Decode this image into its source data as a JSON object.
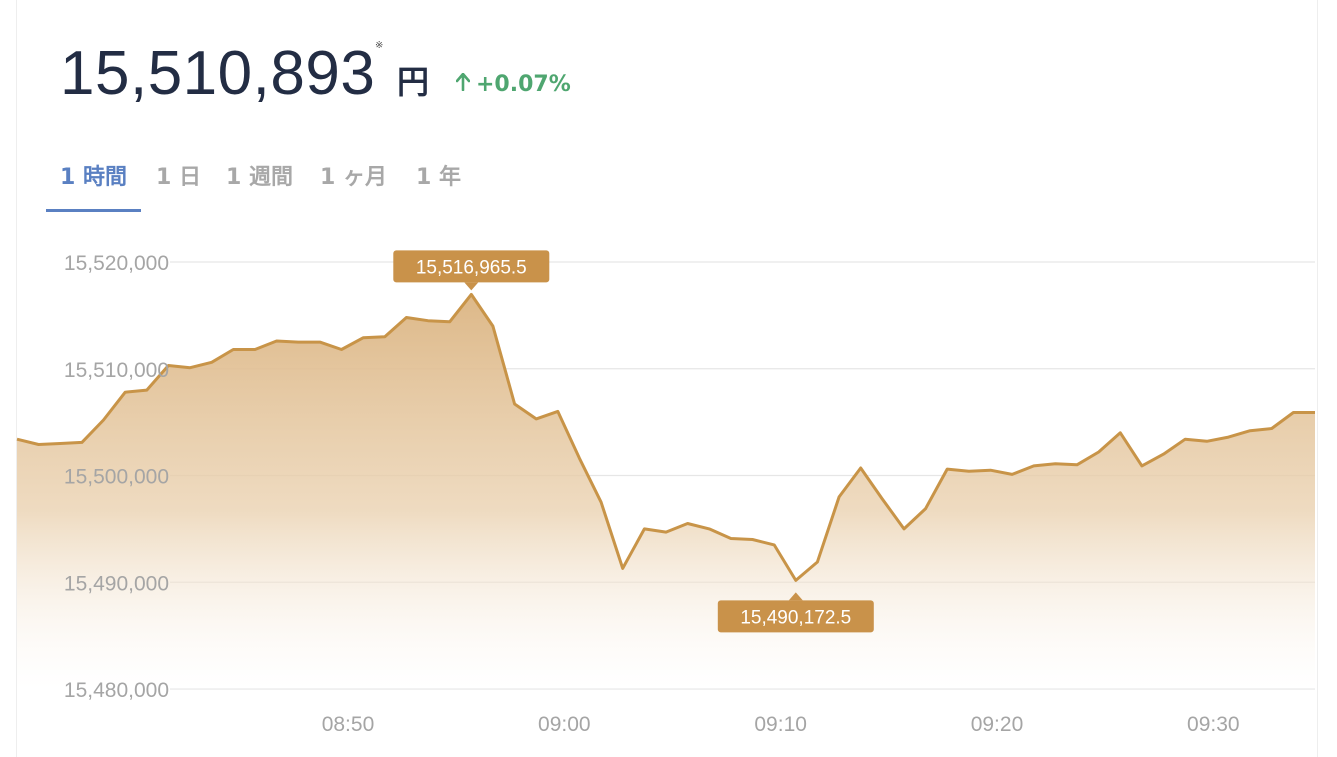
{
  "header": {
    "price": "15,510,893",
    "note_mark": "※",
    "unit": "円",
    "change": "+0.07%",
    "change_icon": "arrow-up-icon"
  },
  "tabs": [
    {
      "label": "1 時間",
      "active": true
    },
    {
      "label": "1 日",
      "active": false
    },
    {
      "label": "1 週間",
      "active": false
    },
    {
      "label": "1 ヶ月",
      "active": false
    },
    {
      "label": "1 年",
      "active": false
    }
  ],
  "colors": {
    "line": "#c89448",
    "fill_top": "#ddb888",
    "callout": "#c9924a",
    "up": "#4fa670",
    "tab_active": "#5a80c2",
    "text_dark": "#232d44"
  },
  "chart_data": {
    "type": "area",
    "ylim": [
      15480000,
      15520000
    ],
    "yticks": [
      "15,480,000",
      "15,490,000",
      "15,500,000",
      "15,510,000",
      "15,520,000"
    ],
    "ytick_values": [
      15480000,
      15490000,
      15500000,
      15510000,
      15520000
    ],
    "xlim_minutes": [
      -15.3,
      44.7
    ],
    "xticks": [
      {
        "label": "08:50",
        "minute": 0
      },
      {
        "label": "09:00",
        "minute": 10
      },
      {
        "label": "09:10",
        "minute": 20
      },
      {
        "label": "09:20",
        "minute": 30
      },
      {
        "label": "09:30",
        "minute": 40
      }
    ],
    "grid": true,
    "series": [
      {
        "x": [
          -15.3,
          -14.3,
          -13.3,
          -12.3,
          -11.3,
          -10.3,
          -9.3,
          -8.3,
          -7.3,
          -6.3,
          -5.3,
          -4.3,
          -3.3,
          -2.3,
          -1.3,
          -0.3,
          0.7,
          1.7,
          2.7,
          3.7,
          4.7,
          5.7,
          6.7,
          7.7,
          8.7,
          9.7,
          10.7,
          11.7,
          12.7,
          13.7,
          14.7,
          15.7,
          16.7,
          17.7,
          18.7,
          19.7,
          20.7,
          21.7,
          22.7,
          23.7,
          24.7,
          25.7,
          26.7,
          27.7,
          28.7,
          29.7,
          30.7,
          31.7,
          32.7,
          33.7,
          34.7,
          35.7,
          36.7,
          37.7,
          38.7,
          39.7,
          40.7,
          41.7,
          42.7,
          43.7,
          44.7
        ],
        "values": [
          15503400,
          15502900,
          15503000,
          15503100,
          15505200,
          15507800,
          15508000,
          15510300,
          15510100,
          15510600,
          15511800,
          15511800,
          15512600,
          15512500,
          15512500,
          15511800,
          15512900,
          15513000,
          15514800,
          15514500,
          15514400,
          15516965.5,
          15514000,
          15506700,
          15505300,
          15506000,
          15501600,
          15497500,
          15491300,
          15495000,
          15494700,
          15495500,
          15495000,
          15494100,
          15494000,
          15493500,
          15490172.5,
          15491900,
          15498000,
          15500700,
          15497800,
          15495000,
          15496900,
          15500600,
          15500400,
          15500500,
          15500100,
          15500900,
          15501100,
          15501000,
          15502200,
          15504000,
          15500900,
          15502000,
          15503400,
          15503200,
          15503600,
          15504200,
          15504400,
          15505900,
          15505900
        ]
      }
    ],
    "annotations": [
      {
        "label": "15,516,965.5",
        "minute": 5.7,
        "value": 15516965.5,
        "position": "above"
      },
      {
        "label": "15,490,172.5",
        "minute": 20.7,
        "value": 15490172.5,
        "position": "below"
      }
    ]
  }
}
